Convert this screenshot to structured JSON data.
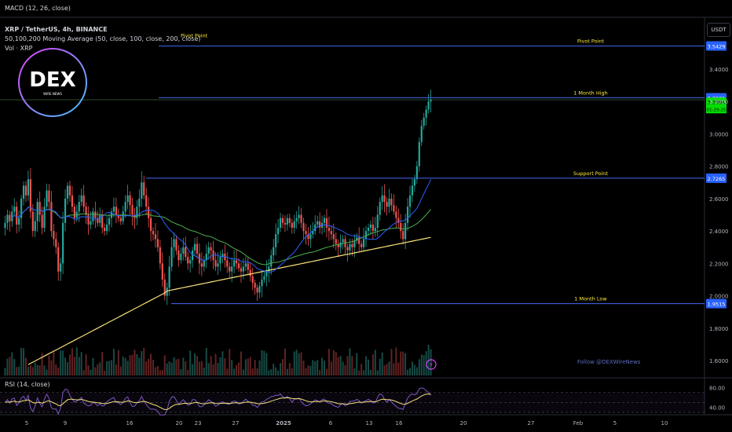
{
  "header": {
    "macd_label": "MACD (12, 26, close)",
    "symbol_line": "XRP / TetherUS, 4h, BINANCE",
    "ma_line": "50,100,200 Moving Average (50, close, 100, close, 200, close)",
    "vol_line": "Vol · XRP",
    "rsi_label": "RSI (14, close)"
  },
  "logo": {
    "text": "DEX",
    "subtext": "WIRE NEWS"
  },
  "price_axis": {
    "currency": "USDT",
    "ticks": [
      "3.4000",
      "3.2000",
      "3.0000",
      "2.8000",
      "2.6000",
      "2.4000",
      "2.2000",
      "2.0000",
      "1.8000",
      "1.6000"
    ],
    "rsi_ticks": [
      "80.00",
      "40.00"
    ]
  },
  "time_axis": {
    "ticks": [
      "5",
      "9",
      "16",
      "20",
      "23",
      "27",
      "2025",
      "6",
      "9",
      "13",
      "16",
      "20",
      "27",
      "Feb",
      "5",
      "10"
    ]
  },
  "levels": [
    {
      "name": "Pivot Point",
      "left_label": "Pivot Point",
      "value": "3.5429",
      "price": 3.5429
    },
    {
      "name": "1 Month High",
      "left_label": "",
      "value": "3.2231",
      "price": 3.2231
    },
    {
      "name": "Support Point",
      "left_label": "",
      "value": "2.7265",
      "price": 2.7265
    },
    {
      "name": "1 Month Low",
      "left_label": "",
      "value": "1.9515",
      "price": 1.9515
    }
  ],
  "current_price": {
    "value": "3.2094",
    "countdown": "01:29:25",
    "price": 3.2094
  },
  "watermark": "Follow @DEXWireNews",
  "colors": {
    "background": "#000000",
    "up": "#26a69a",
    "down": "#ef5350",
    "level_line": "#3a5bd9",
    "level_label": "#ffeb3b",
    "ma50": "#2962ff",
    "ma100": "#4caf50",
    "ma200": "#f5e17a",
    "rsi_line": "#7e57c2",
    "rsi_ma": "#f5e17a",
    "current_price_bg": "#00e000"
  },
  "chart_data": {
    "type": "candlestick",
    "ylim": [
      1.5,
      3.6
    ],
    "rsi_ylim": [
      30,
      90
    ],
    "series": [
      {
        "name": "XRP / TetherUS",
        "values": [
          2.45,
          2.5,
          2.46,
          2.52,
          2.55,
          2.44,
          2.48,
          2.6,
          2.68,
          2.62,
          2.72,
          2.52,
          2.4,
          2.46,
          2.58,
          2.5,
          2.42,
          2.55,
          2.65,
          2.58,
          2.4,
          2.35,
          2.3,
          2.15,
          2.2,
          2.45,
          2.6,
          2.68,
          2.62,
          2.55,
          2.48,
          2.52,
          2.58,
          2.62,
          2.55,
          2.5,
          2.44,
          2.46,
          2.52,
          2.48,
          2.45,
          2.5,
          2.42,
          2.4,
          2.44,
          2.48,
          2.52,
          2.55,
          2.5,
          2.48,
          2.46,
          2.52,
          2.58,
          2.62,
          2.56,
          2.5,
          2.48,
          2.55,
          2.6,
          2.7,
          2.62,
          2.55,
          2.48,
          2.4,
          2.38,
          2.35,
          2.3,
          2.2,
          2.1,
          2.0,
          2.05,
          2.18,
          2.3,
          2.35,
          2.28,
          2.22,
          2.26,
          2.3,
          2.24,
          2.2,
          2.22,
          2.28,
          2.32,
          2.26,
          2.2,
          2.18,
          2.22,
          2.26,
          2.3,
          2.28,
          2.22,
          2.18,
          2.2,
          2.24,
          2.26,
          2.22,
          2.18,
          2.15,
          2.18,
          2.22,
          2.2,
          2.17,
          2.15,
          2.18,
          2.2,
          2.16,
          2.12,
          2.08,
          2.05,
          2.02,
          2.06,
          2.1,
          2.12,
          2.15,
          2.18,
          2.25,
          2.3,
          2.38,
          2.42,
          2.48,
          2.45,
          2.44,
          2.48,
          2.45,
          2.42,
          2.46,
          2.48,
          2.5,
          2.45,
          2.4,
          2.38,
          2.35,
          2.38,
          2.4,
          2.44,
          2.46,
          2.42,
          2.45,
          2.48,
          2.42,
          2.4,
          2.38,
          2.35,
          2.32,
          2.3,
          2.33,
          2.35,
          2.3,
          2.28,
          2.32,
          2.3,
          2.34,
          2.36,
          2.32,
          2.3,
          2.35,
          2.4,
          2.42,
          2.44,
          2.4,
          2.42,
          2.5,
          2.58,
          2.62,
          2.58,
          2.55,
          2.6,
          2.56,
          2.52,
          2.48,
          2.45,
          2.4,
          2.35,
          2.45,
          2.55,
          2.62,
          2.68,
          2.72,
          2.8,
          2.95,
          3.05,
          3.1,
          3.15,
          3.2,
          3.21
        ]
      }
    ],
    "levels": {
      "Pivot Point": 3.5429,
      "1 Month High": 3.2231,
      "Support Point": 2.7265,
      "1 Month Low": 1.9515
    }
  }
}
